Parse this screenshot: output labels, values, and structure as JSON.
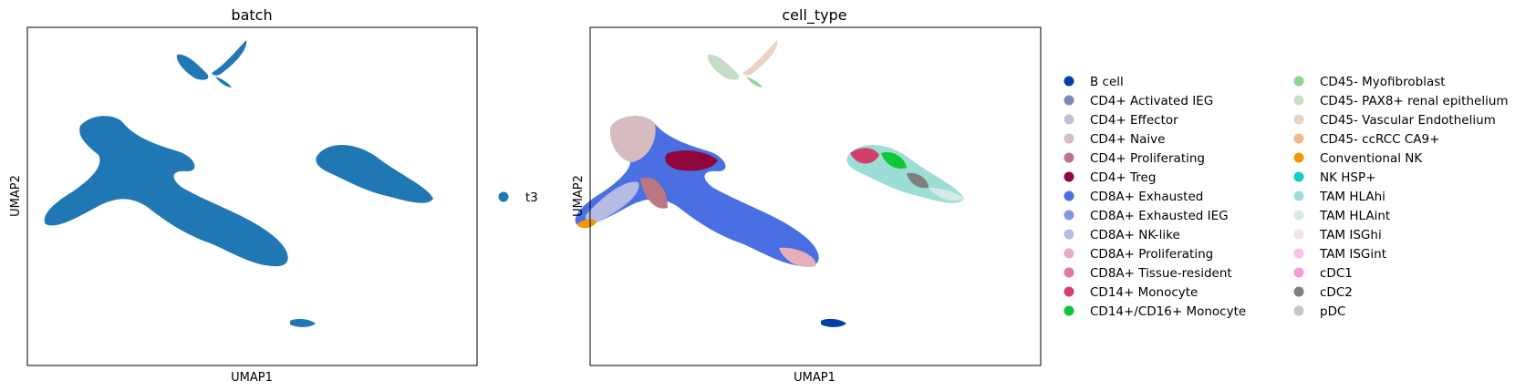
{
  "chart_data": [
    {
      "type": "scatter",
      "title": "batch",
      "xlabel": "UMAP1",
      "ylabel": "UMAP2",
      "grid": false,
      "ticks": "none",
      "legend_placement": "right",
      "series": [
        {
          "name": "t3",
          "color": "#1f77b4"
        }
      ]
    },
    {
      "type": "scatter",
      "title": "cell_type",
      "xlabel": "UMAP1",
      "ylabel": "UMAP2",
      "grid": false,
      "ticks": "none",
      "legend_placement": "right",
      "series": [
        {
          "name": "B cell",
          "color": "#023fa5"
        },
        {
          "name": "CD4+ Activated IEG",
          "color": "#7d87b9"
        },
        {
          "name": "CD4+ Effector",
          "color": "#bec1d4"
        },
        {
          "name": "CD4+ Naive",
          "color": "#d6bcc0"
        },
        {
          "name": "CD4+ Proliferating",
          "color": "#bb7784"
        },
        {
          "name": "CD4+ Treg",
          "color": "#8e063b"
        },
        {
          "name": "CD8A+ Exhausted",
          "color": "#4a6fe3"
        },
        {
          "name": "CD8A+ Exhausted IEG",
          "color": "#8595e1"
        },
        {
          "name": "CD8A+ NK-like",
          "color": "#b5bbe3"
        },
        {
          "name": "CD8A+ Proliferating",
          "color": "#e6afb9"
        },
        {
          "name": "CD8A+ Tissue-resident",
          "color": "#e07b91"
        },
        {
          "name": "CD14+ Monocyte",
          "color": "#d33f6a"
        },
        {
          "name": "CD14+/CD16+ Monocyte",
          "color": "#11c638"
        },
        {
          "name": "CD45- Myofibroblast",
          "color": "#8dd593"
        },
        {
          "name": "CD45- PAX8+ renal epithelium",
          "color": "#c6dec7"
        },
        {
          "name": "CD45- Vascular Endothelium",
          "color": "#ead3c6"
        },
        {
          "name": "CD45- ccRCC CA9+",
          "color": "#f0b98d"
        },
        {
          "name": "Conventional NK",
          "color": "#ef9708"
        },
        {
          "name": "NK HSP+",
          "color": "#0fcfc0"
        },
        {
          "name": "TAM HLAhi",
          "color": "#9cded6"
        },
        {
          "name": "TAM HLAint",
          "color": "#d5eae7"
        },
        {
          "name": "TAM ISGhi",
          "color": "#f3e1eb"
        },
        {
          "name": "TAM ISGint",
          "color": "#f6c4e1"
        },
        {
          "name": "cDC1",
          "color": "#f79cd4"
        },
        {
          "name": "cDC2",
          "color": "#7f7f7f"
        },
        {
          "name": "pDC",
          "color": "#c7c7c7"
        }
      ]
    }
  ]
}
